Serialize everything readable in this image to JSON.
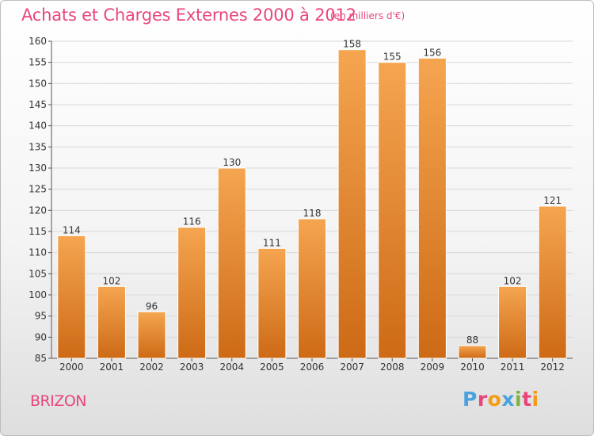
{
  "header": {
    "title": "Achats et Charges Externes 2000 à 2012",
    "subtitle": "(en milliers d'€)"
  },
  "footer": {
    "place": "BRIZON",
    "logo": {
      "letters": [
        "P",
        "r",
        "o",
        "x",
        "i",
        "t",
        "i"
      ],
      "colors": [
        "#4aa3df",
        "#e8467a",
        "#f39c12",
        "#4aa3df",
        "#7cb342",
        "#e8467a",
        "#f39c12"
      ]
    }
  },
  "colors": {
    "accent": "#e8467a",
    "bar_top": "#f5a550",
    "bar_bottom": "#cd6a16",
    "grid": "#d8d8d8"
  },
  "chart_data": {
    "type": "bar",
    "categories": [
      "2000",
      "2001",
      "2002",
      "2003",
      "2004",
      "2005",
      "2006",
      "2007",
      "2008",
      "2009",
      "2010",
      "2011",
      "2012"
    ],
    "values": [
      114,
      102,
      96,
      116,
      130,
      111,
      118,
      158,
      155,
      156,
      88,
      102,
      121
    ],
    "ylim": [
      85,
      160
    ],
    "yticks": [
      85,
      90,
      95,
      100,
      105,
      110,
      115,
      120,
      125,
      130,
      135,
      140,
      145,
      150,
      155,
      160
    ],
    "grid": true,
    "legend": "none"
  }
}
